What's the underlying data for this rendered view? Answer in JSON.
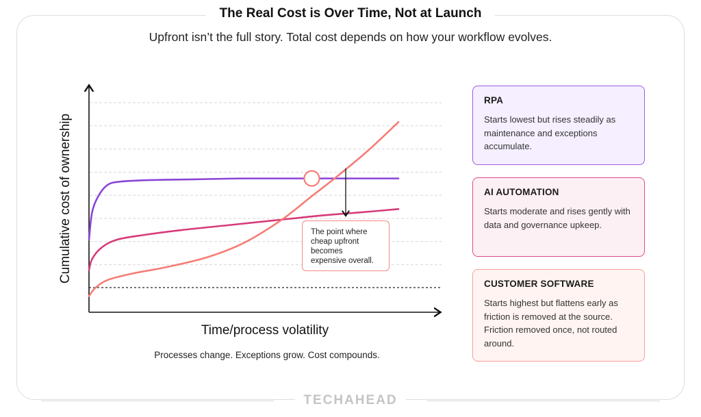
{
  "title": "The Real Cost is Over Time, Not at Launch",
  "subtitle": "Upfront isn’t the full story. Total cost depends on how your workflow evolves.",
  "caption": "Processes change. Exceptions grow. Cost compounds.",
  "annotation": {
    "lines": [
      "The point where",
      "cheap upfront",
      "becomes",
      "expensive overall."
    ]
  },
  "cards": [
    {
      "heading": "RPA",
      "body": "Starts lowest but rises steadily as maintenance and exceptions accumulate.",
      "border": "#9d5ce0",
      "bg": "#f5efff"
    },
    {
      "heading": "AI AUTOMATION",
      "body": "Starts moderate and rises gently with data and governance upkeep.",
      "border": "#e0488a",
      "bg": "#fdf0f5"
    },
    {
      "heading": "CUSTOMER SOFTWARE",
      "body": "Starts highest but flattens early as friction is removed at the source. Friction removed once, not routed around.",
      "border": "#f4a09a",
      "bg": "#fff4f2"
    }
  ],
  "logo": "TECHAHEAD",
  "chart_data": {
    "type": "line",
    "xlabel": "Time/process volatility",
    "ylabel": "Cumulative cost of ownership",
    "grid": "horizontal dashed",
    "series": [
      {
        "color": "#8a44d6",
        "points": [
          [
            0,
            45
          ],
          [
            1,
            62
          ],
          [
            3,
            72
          ],
          [
            6,
            79
          ],
          [
            10,
            81
          ],
          [
            20,
            82
          ],
          [
            35,
            82.5
          ],
          [
            50,
            83
          ],
          [
            70,
            83
          ],
          [
            100,
            83
          ]
        ]
      },
      {
        "color": "#d63a7a",
        "points": [
          [
            0,
            26
          ],
          [
            1,
            33
          ],
          [
            4,
            40
          ],
          [
            9,
            45
          ],
          [
            18,
            48
          ],
          [
            30,
            51
          ],
          [
            45,
            54
          ],
          [
            60,
            57
          ],
          [
            75,
            60
          ],
          [
            88,
            62
          ],
          [
            100,
            64
          ]
        ]
      },
      {
        "color": "#f67c76",
        "points": [
          [
            0,
            10
          ],
          [
            2,
            15
          ],
          [
            6,
            20
          ],
          [
            14,
            24
          ],
          [
            25,
            28
          ],
          [
            38,
            34
          ],
          [
            50,
            43
          ],
          [
            62,
            57
          ],
          [
            72,
            72
          ],
          [
            80,
            84
          ],
          [
            90,
            100
          ],
          [
            100,
            118
          ]
        ]
      }
    ],
    "baseline_y": 10,
    "crossover": {
      "x": 72,
      "y": 83
    },
    "ylim": [
      0,
      130
    ],
    "xlim": [
      0,
      100
    ]
  }
}
